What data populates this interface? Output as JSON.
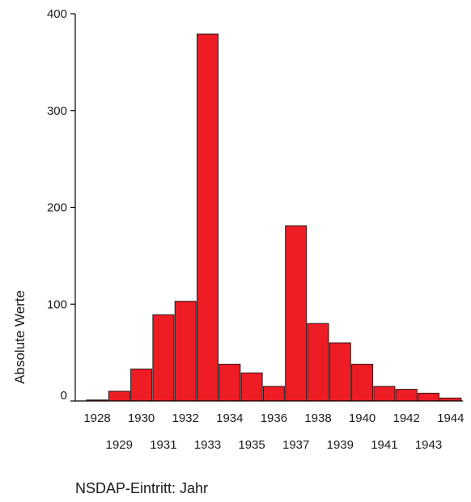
{
  "chart_data": {
    "type": "bar",
    "categories": [
      "1928",
      "1929",
      "1930",
      "1931",
      "1932",
      "1933",
      "1934",
      "1935",
      "1936",
      "1937",
      "1938",
      "1939",
      "1940",
      "1941",
      "1942",
      "1943",
      "1944"
    ],
    "values": [
      1,
      10,
      33,
      89,
      103,
      379,
      38,
      29,
      15,
      181,
      80,
      60,
      38,
      15,
      12,
      8,
      3
    ],
    "title": "",
    "xlabel": "NSDAP-Eintritt: Jahr",
    "ylabel": "Absolute Werte",
    "ylim": [
      0,
      400
    ],
    "yticks": [
      0,
      100,
      200,
      300,
      400
    ],
    "grid": false,
    "legend": "none",
    "colors": {
      "bar_fill": "#ee1c24",
      "bar_stroke": "#2a1a1a",
      "axis": "#000000"
    }
  }
}
